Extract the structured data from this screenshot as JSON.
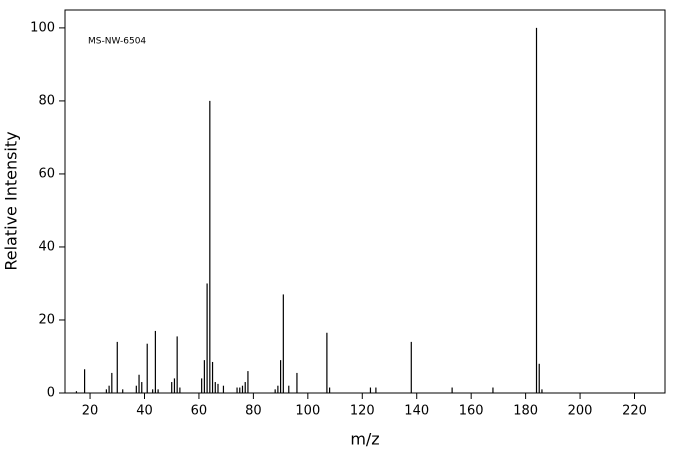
{
  "chart_data": {
    "type": "stick",
    "annotation": "MS-NW-6504",
    "xlabel": "m/z",
    "ylabel": "Relative Intensity",
    "color": "#000000",
    "x": [
      15,
      18,
      26,
      27,
      28,
      30,
      32,
      37,
      38,
      39,
      41,
      43,
      44,
      45,
      50,
      51,
      52,
      53,
      61,
      62,
      63,
      64,
      65,
      66,
      67,
      69,
      74,
      75,
      76,
      77,
      78,
      88,
      89,
      90,
      91,
      93,
      96,
      107,
      108,
      123,
      125,
      138,
      153,
      168,
      184,
      185,
      186
    ],
    "values": [
      0.5,
      6.5,
      1,
      2,
      5.5,
      14,
      1,
      2,
      5,
      3,
      13.5,
      1,
      17,
      1,
      3,
      4,
      15.5,
      1.5,
      4,
      9,
      30,
      80,
      8.5,
      3,
      2.5,
      2,
      1.5,
      1.5,
      2,
      3,
      6,
      1,
      2,
      9,
      27,
      2,
      5.5,
      16.5,
      1.5,
      1.5,
      1.5,
      14,
      1.5,
      1.5,
      100,
      8,
      1
    ],
    "xlim": [
      10.8,
      231.2
    ],
    "ylim": [
      0,
      104.9
    ],
    "xticks": [
      20,
      40,
      60,
      80,
      100,
      120,
      140,
      160,
      180,
      200,
      220
    ],
    "yticks": [
      0,
      20,
      40,
      60,
      80,
      100
    ]
  }
}
